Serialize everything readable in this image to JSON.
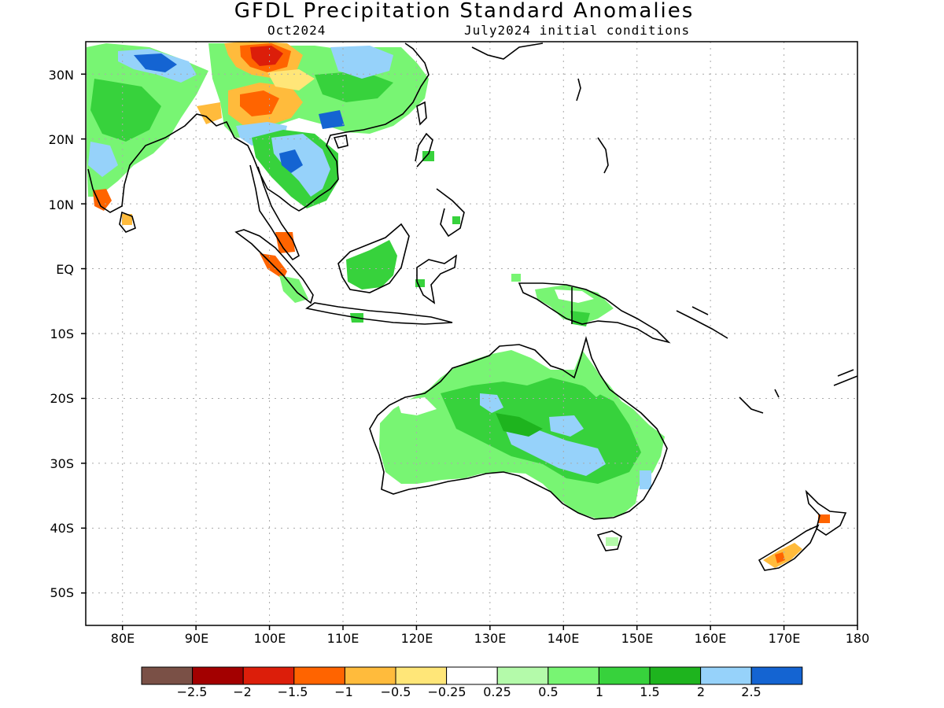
{
  "map": {
    "title": "GFDL Precipitation Standard Anomalies",
    "subtitle_left": "Oct2024",
    "subtitle_right": "July2024 initial conditions",
    "lat_labels": [
      "30N",
      "20N",
      "10N",
      "EQ",
      "10S",
      "20S",
      "30S",
      "40S",
      "50S"
    ],
    "lon_labels": [
      "80E",
      "90E",
      "100E",
      "110E",
      "120E",
      "130E",
      "140E",
      "150E",
      "160E",
      "170E",
      "180"
    ],
    "extent": {
      "lon": [
        75,
        180
      ],
      "lat": [
        -55,
        35
      ]
    },
    "grid": "dotted"
  },
  "legend": {
    "colors": [
      "#7a5046",
      "#a30000",
      "#dc1e0a",
      "#ff6400",
      "#ffbb3c",
      "#ffe678",
      "#ffffff",
      "#b4faaa",
      "#78f573",
      "#37d23c",
      "#1eb41e",
      "#96d2fa",
      "#1464d2"
    ],
    "labels": [
      "−2.5",
      "−2",
      "−1.5",
      "−1",
      "−0.5",
      "−0.25",
      "0.25",
      "0.5",
      "1",
      "1.5",
      "2",
      "2.5"
    ]
  }
}
